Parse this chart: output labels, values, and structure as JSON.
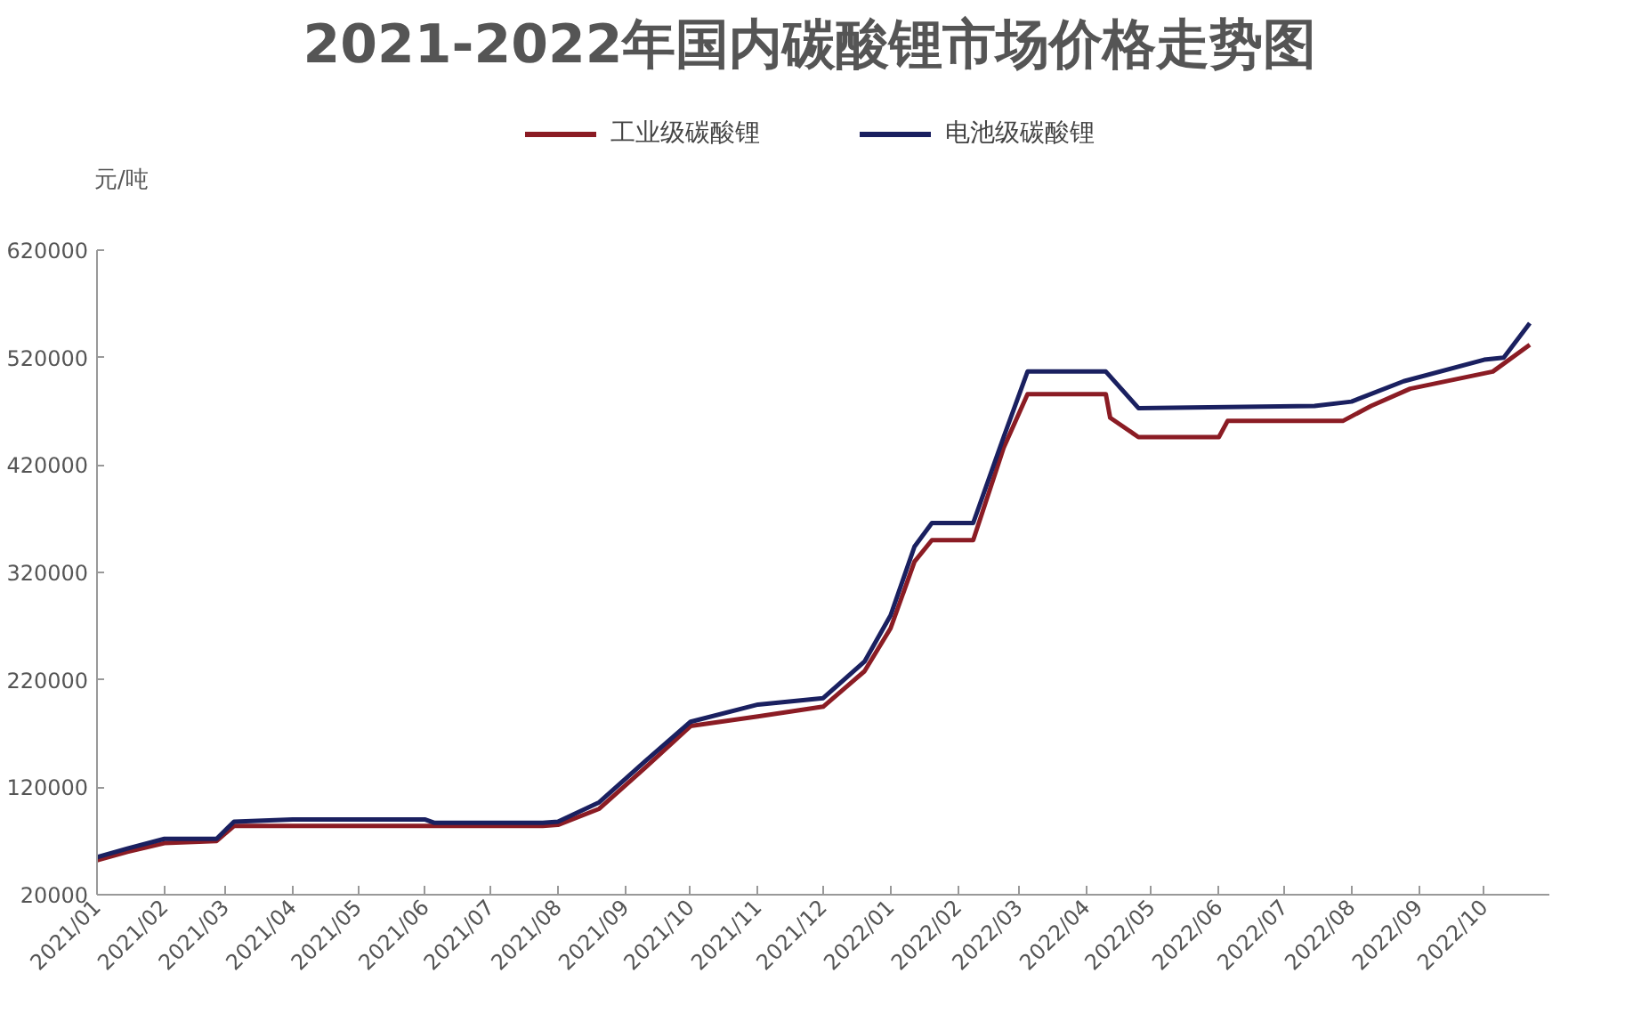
{
  "chart_data": {
    "type": "line",
    "title": "2021-2022年国内碳酸锂市场价格走势图",
    "ylabel": "元/吨",
    "legend": "top",
    "grid": false,
    "marker": "none",
    "line_style": "solid",
    "xlim": [
      "2021-01-01",
      "2022-10-31"
    ],
    "xticks": [
      {
        "value": "2021-01",
        "label": "2021/01"
      },
      {
        "value": "2021-02",
        "label": "2021/02"
      },
      {
        "value": "2021-03",
        "label": "2021/03"
      },
      {
        "value": "2021-04",
        "label": "2021/04"
      },
      {
        "value": "2021-05",
        "label": "2021/05"
      },
      {
        "value": "2021-06",
        "label": "2021/06"
      },
      {
        "value": "2021-07",
        "label": "2021/07"
      },
      {
        "value": "2021-08",
        "label": "2021/08"
      },
      {
        "value": "2021-09",
        "label": "2021/09"
      },
      {
        "value": "2021-10",
        "label": "2021/10"
      },
      {
        "value": "2021-11",
        "label": "2021/11"
      },
      {
        "value": "2021-12",
        "label": "2021/12"
      },
      {
        "value": "2022-01",
        "label": "2022/01"
      },
      {
        "value": "2022-02",
        "label": "2022/02"
      },
      {
        "value": "2022-03",
        "label": "2022/03"
      },
      {
        "value": "2022-04",
        "label": "2022/04"
      },
      {
        "value": "2022-05",
        "label": "2022/05"
      },
      {
        "value": "2022-06",
        "label": "2022/06"
      },
      {
        "value": "2022-07",
        "label": "2022/07"
      },
      {
        "value": "2022-08",
        "label": "2022/08"
      },
      {
        "value": "2022-09",
        "label": "2022/09"
      },
      {
        "value": "2022-10",
        "label": "2022/10"
      }
    ],
    "ylim": [
      20000,
      620000
    ],
    "yticks": [
      20000,
      120000,
      220000,
      320000,
      420000,
      520000,
      620000
    ],
    "series": [
      {
        "name": "工业级碳酸锂",
        "color": "#8b1c24",
        "x": [
          "2021-01-01",
          "2021-01-15",
          "2021-02-01",
          "2021-02-25",
          "2021-03-05",
          "2021-04-01",
          "2021-06-01",
          "2021-07-25",
          "2021-08-01",
          "2021-08-20",
          "2021-09-10",
          "2021-10-01",
          "2021-11-01",
          "2021-12-01",
          "2021-12-20",
          "2022-01-01",
          "2022-01-12",
          "2022-01-20",
          "2022-02-08",
          "2022-02-22",
          "2022-03-05",
          "2022-04-10",
          "2022-04-12",
          "2022-04-25",
          "2022-06-01",
          "2022-06-05",
          "2022-07-28",
          "2022-08-10",
          "2022-08-28",
          "2022-10-05",
          "2022-10-22"
        ],
        "values": [
          52000,
          60000,
          68000,
          70000,
          84000,
          84000,
          84000,
          84000,
          85000,
          100000,
          138000,
          177000,
          186000,
          195000,
          228000,
          268000,
          330000,
          350000,
          350000,
          436000,
          486000,
          486000,
          464000,
          446000,
          446000,
          461000,
          461000,
          475000,
          491000,
          507000,
          532000
        ]
      },
      {
        "name": "电池级碳酸锂",
        "color": "#1a2060",
        "x": [
          "2021-01-01",
          "2021-01-15",
          "2021-02-01",
          "2021-02-25",
          "2021-03-05",
          "2021-04-01",
          "2021-06-01",
          "2021-06-05",
          "2021-07-25",
          "2021-08-01",
          "2021-08-20",
          "2021-09-10",
          "2021-10-01",
          "2021-11-01",
          "2021-12-01",
          "2021-12-20",
          "2022-01-01",
          "2022-01-12",
          "2022-01-20",
          "2022-02-08",
          "2022-02-22",
          "2022-03-05",
          "2022-04-10",
          "2022-04-25",
          "2022-07-15",
          "2022-08-01",
          "2022-08-25",
          "2022-10-01",
          "2022-10-10",
          "2022-10-22"
        ],
        "values": [
          55000,
          63000,
          72000,
          72000,
          88000,
          90000,
          90000,
          87000,
          87000,
          88000,
          106000,
          144000,
          181000,
          197000,
          203000,
          237000,
          280000,
          344000,
          366000,
          366000,
          446000,
          507000,
          507000,
          473000,
          475000,
          479000,
          498000,
          518000,
          520000,
          552000
        ]
      }
    ]
  }
}
